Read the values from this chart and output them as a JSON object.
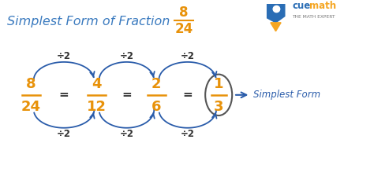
{
  "title_text": "Simplest Form of Fraction",
  "title_fraction_num": "8",
  "title_fraction_den": "24",
  "bg_color": "#ffffff",
  "title_color": "#3a7abf",
  "fraction_color": "#e8920a",
  "eq_color": "#444444",
  "arrow_color": "#2a5caa",
  "div_color": "#333333",
  "simplest_form_color": "#2a5caa",
  "fractions": [
    {
      "num": "8",
      "den": "24"
    },
    {
      "num": "4",
      "den": "12"
    },
    {
      "num": "2",
      "den": "6"
    },
    {
      "num": "1",
      "den": "3"
    }
  ],
  "div_labels": [
    "÷2",
    "÷2",
    "÷2"
  ],
  "figsize": [
    4.74,
    2.24
  ],
  "dpi": 100
}
